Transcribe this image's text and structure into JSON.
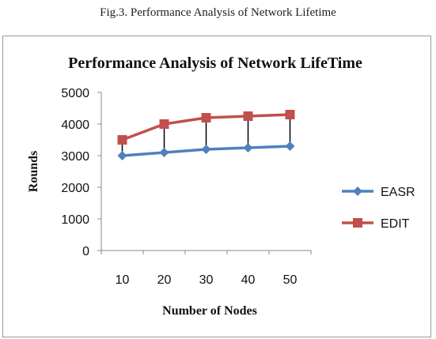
{
  "caption": "Fig.3. Performance Analysis of Network Lifetime",
  "chart_data": {
    "type": "line",
    "title": "Performance Analysis of Network LifeTime",
    "xlabel": "Number of Nodes",
    "ylabel": "Rounds",
    "categories": [
      "10",
      "20",
      "30",
      "40",
      "50"
    ],
    "ylim": [
      0,
      5000
    ],
    "yticks": [
      0,
      1000,
      2000,
      3000,
      4000,
      5000
    ],
    "grid": false,
    "legend_position": "right",
    "drop_lines": true,
    "series": [
      {
        "name": "EASR",
        "values": [
          3000,
          3100,
          3200,
          3250,
          3300
        ],
        "color": "#4f81bd",
        "marker": "diamond"
      },
      {
        "name": "EDIT",
        "values": [
          3500,
          4000,
          4200,
          4250,
          4300
        ],
        "color": "#c0504d",
        "marker": "square"
      }
    ]
  }
}
